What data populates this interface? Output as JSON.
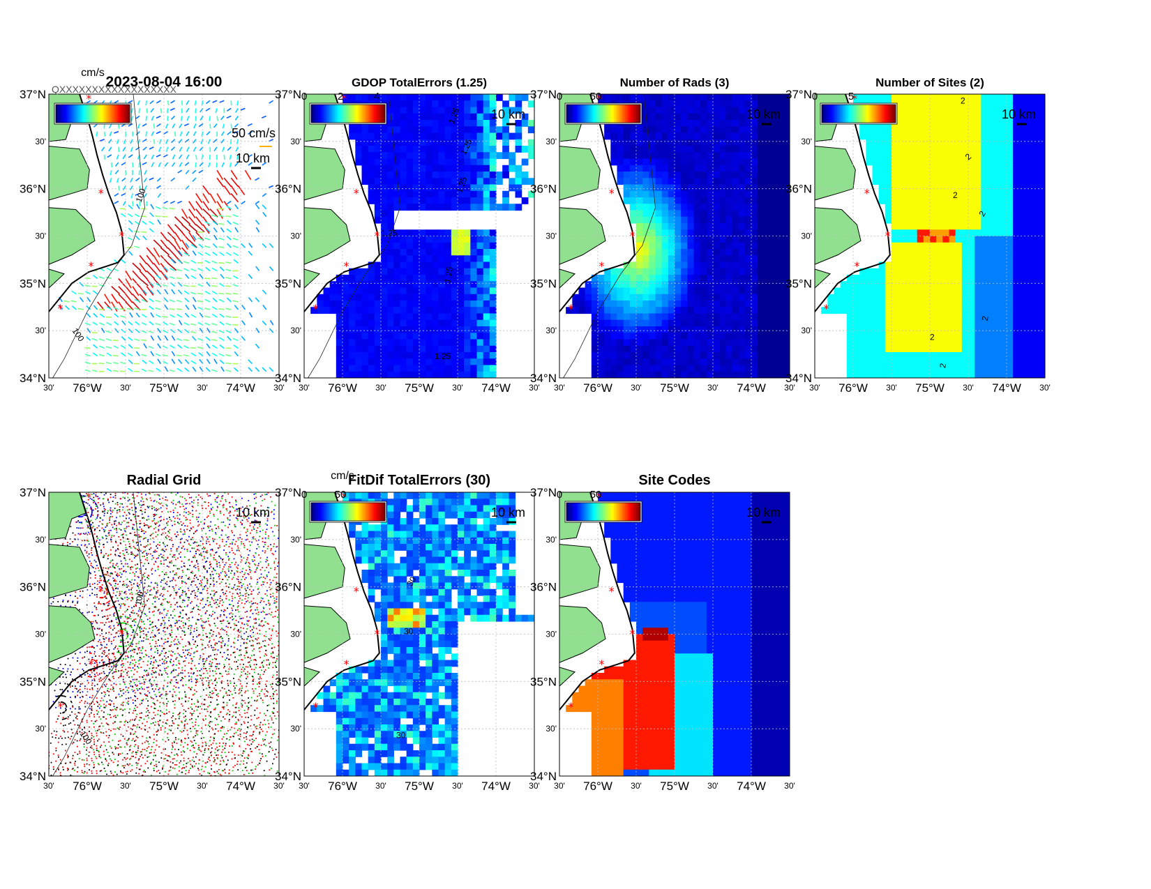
{
  "colormap_stops": [
    "#00007f",
    "#0000ff",
    "#007fff",
    "#00ffff",
    "#7fff7f",
    "#ffff00",
    "#ff7f00",
    "#ff0000",
    "#7f0000"
  ],
  "colors": {
    "land": "#90e090",
    "coast": "#000000",
    "site_marker": "#ff0000",
    "grid": "#bbbbbb"
  },
  "lat_labels": [
    "37°N",
    "30'",
    "36°N",
    "30'",
    "35°N",
    "30'",
    "34°N"
  ],
  "lon_labels": [
    "30'",
    "76°W",
    "30'",
    "75°W",
    "30'",
    "74°W",
    "30'"
  ],
  "scale_bar_label": "10 km",
  "panels": [
    {
      "id": "currents",
      "title": "2023-08-04 16:00",
      "colorbar_unit": "cm/s",
      "colorbar_ticks": [],
      "vector_scale_label": "50 cm/s",
      "contour_labels": [
        "100",
        "100"
      ],
      "kind": "vectors",
      "overlap_text": "QXXXXXXXXXXXXXXXXXX"
    },
    {
      "id": "gdop",
      "title": "GDOP TotalErrors (1.25)",
      "colorbar_unit": "",
      "colorbar_ticks": [
        "0",
        "2",
        "4"
      ],
      "contour_labels": [
        "1.25",
        "1.25",
        "1.25",
        "1.25",
        "1.25",
        "1.25"
      ],
      "kind": "field-gdop"
    },
    {
      "id": "nrads",
      "title": "Number of Rads (3)",
      "colorbar_unit": "",
      "colorbar_ticks": [
        "0",
        "50"
      ],
      "contour_labels": [],
      "kind": "field-nrads"
    },
    {
      "id": "nsites",
      "title": "Number of Sites (2)",
      "colorbar_unit": "",
      "colorbar_ticks": [
        "0",
        "5"
      ],
      "contour_labels": [
        "2",
        "2",
        "2",
        "2",
        "2",
        "2",
        "2"
      ],
      "kind": "field-nsites"
    },
    {
      "id": "radgrid",
      "title": "Radial Grid",
      "colorbar_unit": "",
      "colorbar_ticks": [],
      "contour_labels": [
        "100",
        "100"
      ],
      "kind": "radial-grid"
    },
    {
      "id": "fitdif",
      "title": "FitDif TotalErrors (30)",
      "colorbar_unit": "cm/s",
      "colorbar_ticks": [
        "0",
        "50"
      ],
      "contour_labels": [
        "30",
        "30",
        "30"
      ],
      "kind": "field-fitdif"
    },
    {
      "id": "sitecodes",
      "title": "Site Codes",
      "colorbar_unit": "",
      "colorbar_ticks": [
        "0",
        "50"
      ],
      "contour_labels": [],
      "kind": "field-sitecodes"
    }
  ]
}
